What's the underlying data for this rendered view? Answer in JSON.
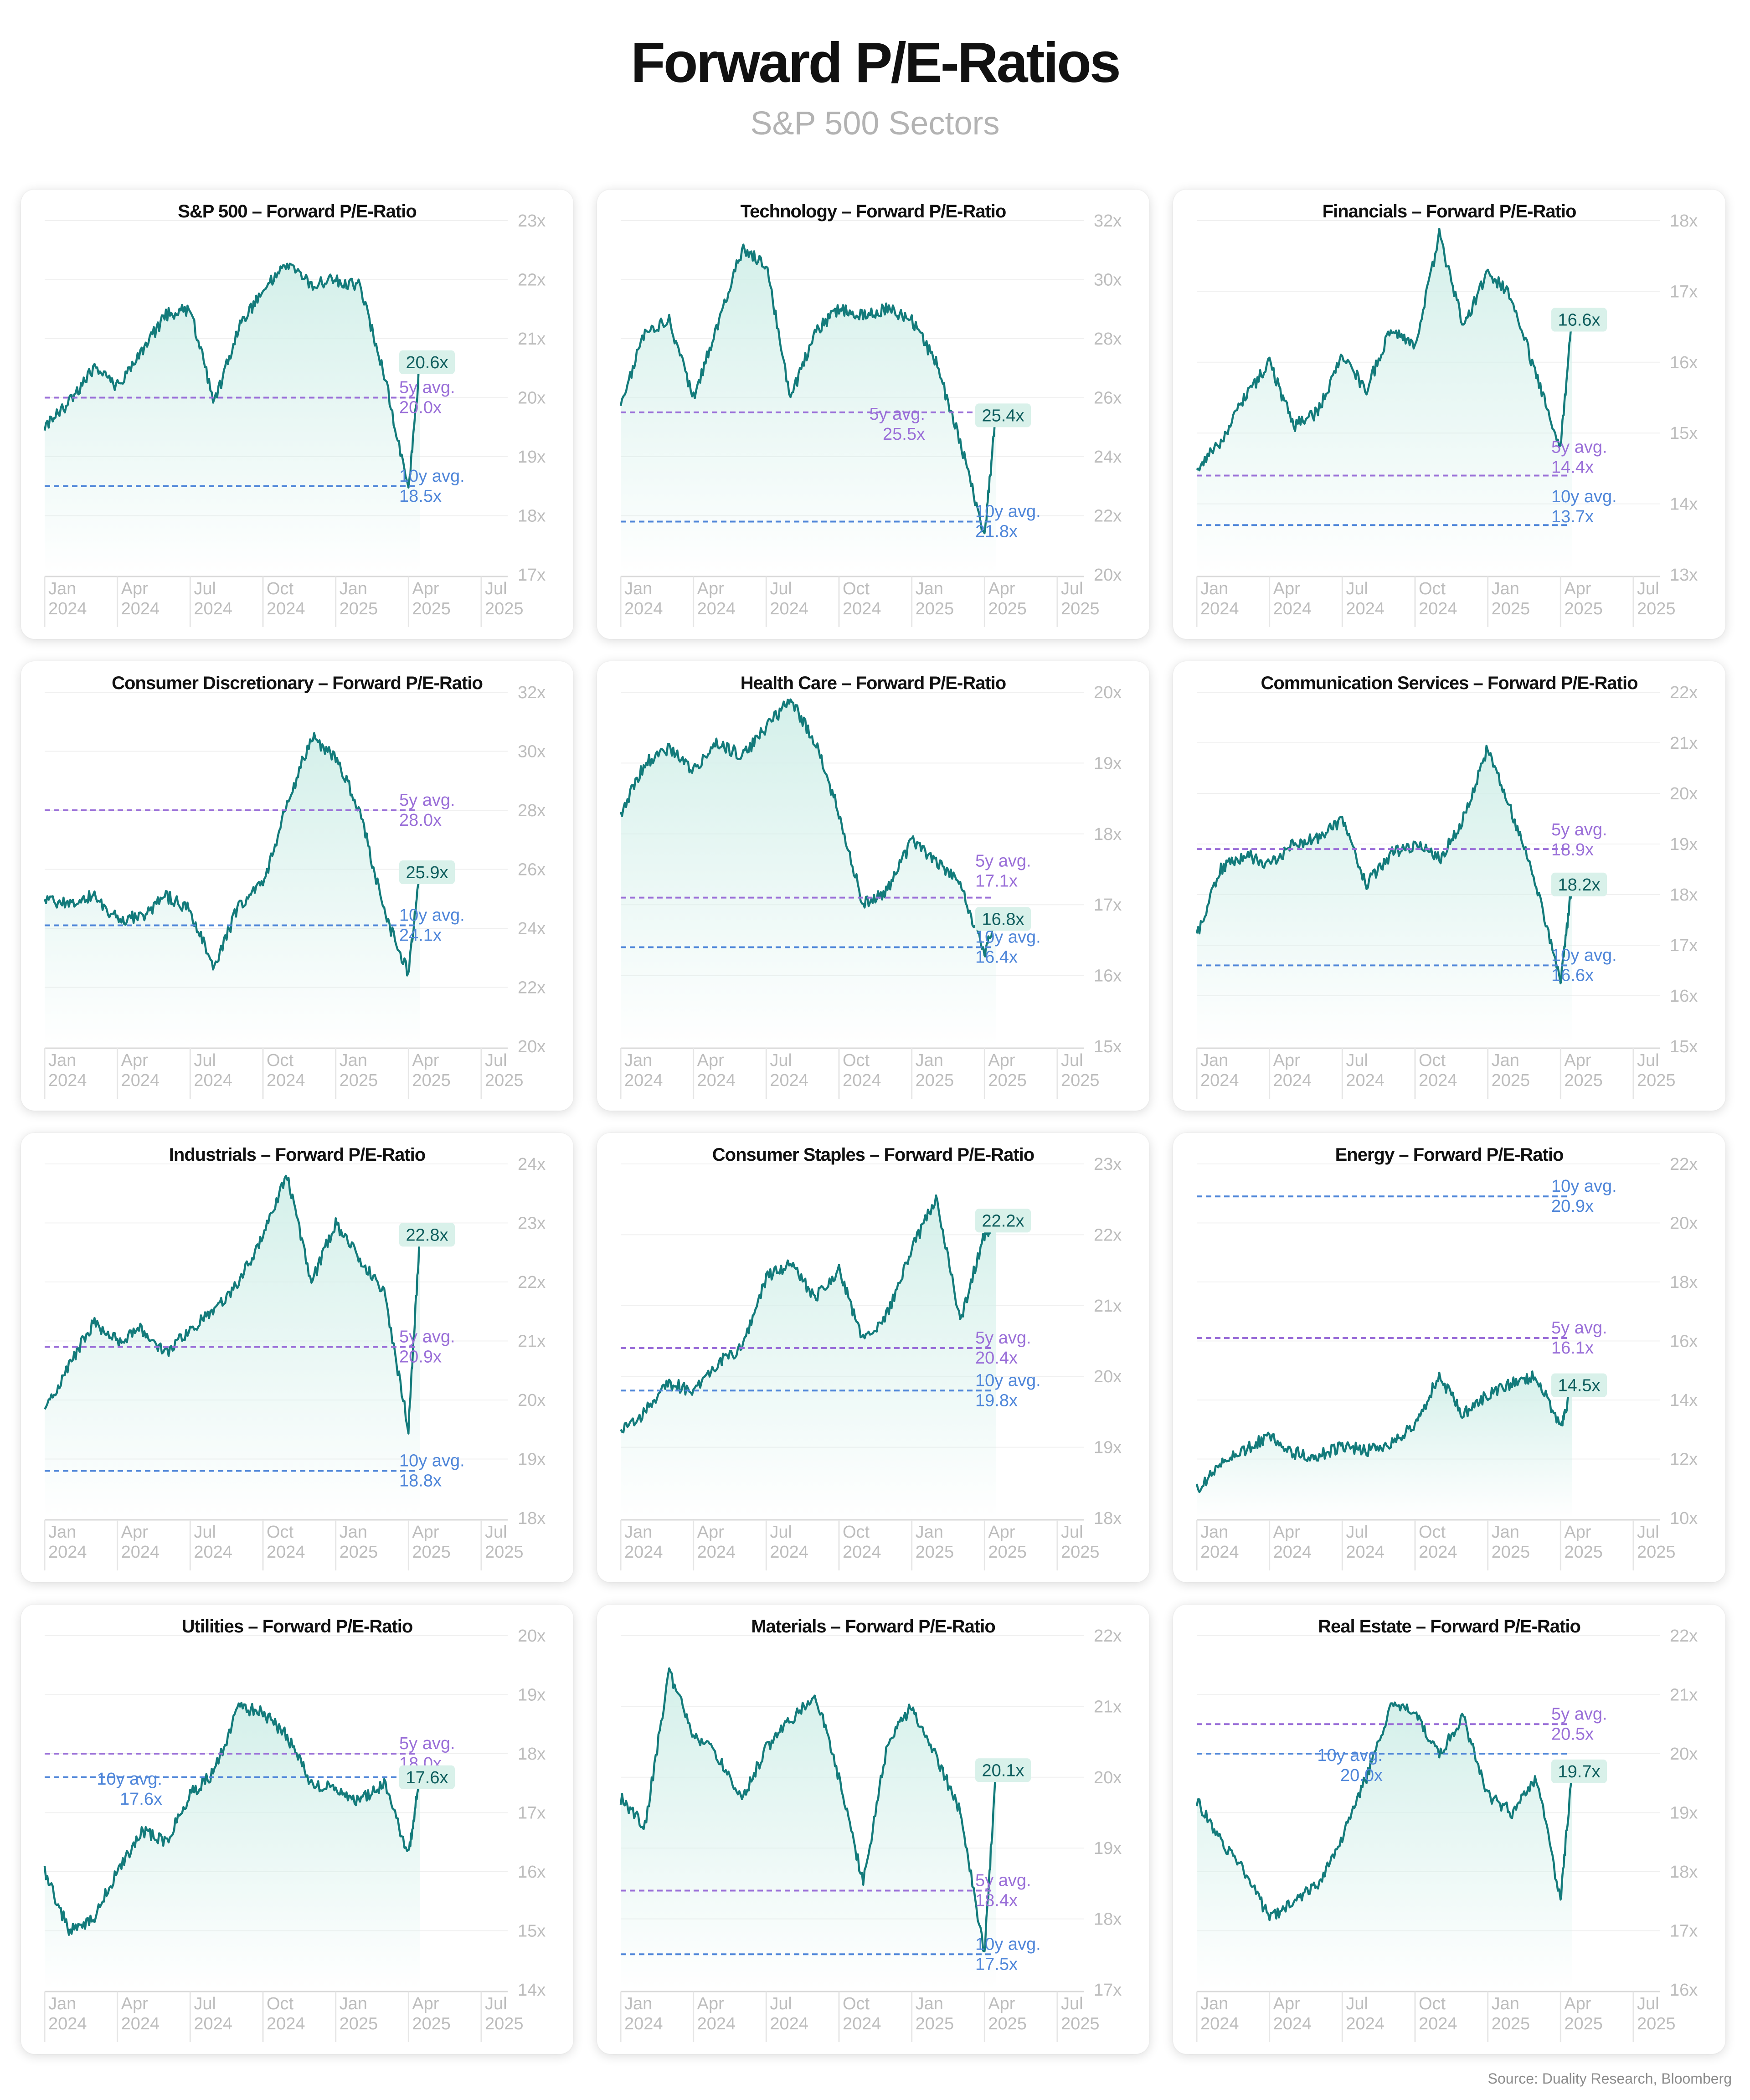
{
  "title": "Forward P/E-Ratios",
  "subtitle": "S&P 500 Sectors",
  "source": "Source: Duality Research, Bloomberg",
  "colors": {
    "line": "#137b7b",
    "fill": "#d2efe9",
    "avg5": "#9a6fd8",
    "avg10": "#4f86d9",
    "badge": "#d9f1ea",
    "axis": "#bdbdbd",
    "grid": "#f0f0f0"
  },
  "x_axis": [
    [
      "Jan",
      "2024"
    ],
    [
      "Apr",
      "2024"
    ],
    [
      "Jul",
      "2024"
    ],
    [
      "Oct",
      "2024"
    ],
    [
      "Jan",
      "2025"
    ],
    [
      "Apr",
      "2025"
    ],
    [
      "Jul",
      "2025"
    ]
  ],
  "chart_data": [
    {
      "type": "line",
      "title": "S&P 500 – Forward P/E-Ratio",
      "ylim": [
        17,
        23
      ],
      "yticks": [
        "17x",
        "18x",
        "19x",
        "20x",
        "21x",
        "22x",
        "23x"
      ],
      "x": [
        "2024-01",
        "2024-02",
        "2024-03",
        "2024-04",
        "2024-05",
        "2024-06",
        "2024-07",
        "2024-08",
        "2024-09",
        "2024-10",
        "2024-11",
        "2024-12",
        "2025-01",
        "2025-02",
        "2025-03",
        "2025-04",
        "2025-04-15"
      ],
      "values": [
        19.5,
        19.9,
        20.5,
        20.2,
        20.8,
        21.4,
        21.5,
        19.9,
        21.2,
        21.8,
        22.3,
        21.9,
        22.0,
        21.9,
        20.4,
        18.4,
        20.6
      ],
      "current_label": "20.6x",
      "avg5": {
        "value": 20.0,
        "label": [
          "5y avg.",
          "20.0x"
        ]
      },
      "avg10": {
        "value": 18.5,
        "label": [
          "10y avg.",
          "18.5x"
        ]
      }
    },
    {
      "type": "line",
      "title": "Technology – Forward P/E-Ratio",
      "ylim": [
        20,
        32
      ],
      "yticks": [
        "20x",
        "22x",
        "24x",
        "26x",
        "28x",
        "30x",
        "32x"
      ],
      "x": [
        "2024-01",
        "2024-02",
        "2024-03",
        "2024-04",
        "2024-05",
        "2024-06",
        "2024-07",
        "2024-08",
        "2024-09",
        "2024-10",
        "2024-11",
        "2024-12",
        "2025-01",
        "2025-02",
        "2025-03",
        "2025-04",
        "2025-04-15"
      ],
      "values": [
        25.8,
        28.2,
        28.6,
        26.0,
        28.5,
        31.0,
        30.5,
        26.0,
        28.2,
        29.0,
        28.8,
        29.0,
        28.6,
        27.2,
        24.5,
        21.3,
        25.4
      ],
      "current_label": "25.4x",
      "avg5": {
        "value": 25.5,
        "label": [
          "5y avg.",
          "25.5x"
        ]
      },
      "avg10": {
        "value": 21.8,
        "label": [
          "10y avg.",
          "21.8x"
        ]
      }
    },
    {
      "type": "line",
      "title": "Financials – Forward P/E-Ratio",
      "ylim": [
        13,
        18
      ],
      "yticks": [
        "13x",
        "14x",
        "15x",
        "16x",
        "17x",
        "18x"
      ],
      "x": [
        "2024-01",
        "2024-02",
        "2024-03",
        "2024-04",
        "2024-05",
        "2024-06",
        "2024-07",
        "2024-08",
        "2024-09",
        "2024-10",
        "2024-11",
        "2024-12",
        "2025-01",
        "2025-02",
        "2025-03",
        "2025-04",
        "2025-04-15"
      ],
      "values": [
        14.5,
        14.9,
        15.5,
        16.0,
        15.1,
        15.3,
        16.1,
        15.6,
        16.5,
        16.2,
        17.8,
        16.5,
        17.3,
        16.9,
        15.8,
        14.8,
        16.6
      ],
      "current_label": "16.6x",
      "avg5": {
        "value": 14.4,
        "label": [
          "5y avg.",
          "14.4x"
        ]
      },
      "avg10": {
        "value": 13.7,
        "label": [
          "10y avg.",
          "13.7x"
        ]
      }
    },
    {
      "type": "line",
      "title": "Consumer Discretionary – Forward P/E-Ratio",
      "ylim": [
        20,
        32
      ],
      "yticks": [
        "20x",
        "22x",
        "24x",
        "26x",
        "28x",
        "30x",
        "32x"
      ],
      "x": [
        "2024-01",
        "2024-02",
        "2024-03",
        "2024-04",
        "2024-05",
        "2024-06",
        "2024-07",
        "2024-08",
        "2024-09",
        "2024-10",
        "2024-11",
        "2024-12",
        "2025-01",
        "2025-02",
        "2025-03",
        "2025-04",
        "2025-04-15"
      ],
      "values": [
        25.0,
        24.8,
        25.1,
        24.3,
        24.4,
        25.1,
        24.6,
        22.6,
        24.8,
        25.5,
        28.2,
        30.5,
        29.8,
        28.0,
        24.5,
        22.5,
        25.9
      ],
      "current_label": "25.9x",
      "avg5": {
        "value": 28.0,
        "label": [
          "5y avg.",
          "28.0x"
        ]
      },
      "avg10": {
        "value": 24.1,
        "label": [
          "10y avg.",
          "24.1x"
        ]
      }
    },
    {
      "type": "line",
      "title": "Health Care – Forward P/E-Ratio",
      "ylim": [
        15,
        20
      ],
      "yticks": [
        "15x",
        "16x",
        "17x",
        "18x",
        "19x",
        "20x"
      ],
      "x": [
        "2024-01",
        "2024-02",
        "2024-03",
        "2024-04",
        "2024-05",
        "2024-06",
        "2024-07",
        "2024-08",
        "2024-09",
        "2024-10",
        "2024-11",
        "2024-12",
        "2025-01",
        "2025-02",
        "2025-03",
        "2025-04",
        "2025-04-15"
      ],
      "values": [
        18.3,
        19.0,
        19.2,
        18.9,
        19.3,
        19.1,
        19.5,
        19.9,
        19.3,
        18.3,
        17.0,
        17.2,
        17.9,
        17.6,
        17.3,
        16.3,
        16.8
      ],
      "current_label": "16.8x",
      "avg5": {
        "value": 17.1,
        "label": [
          "5y avg.",
          "17.1x"
        ]
      },
      "avg10": {
        "value": 16.4,
        "label": [
          "10y avg.",
          "16.4x"
        ]
      }
    },
    {
      "type": "line",
      "title": "Communication Services – Forward P/E-Ratio",
      "ylim": [
        15,
        22
      ],
      "yticks": [
        "15x",
        "16x",
        "17x",
        "18x",
        "19x",
        "20x",
        "21x",
        "22x"
      ],
      "x": [
        "2024-01",
        "2024-02",
        "2024-03",
        "2024-04",
        "2024-05",
        "2024-06",
        "2024-07",
        "2024-08",
        "2024-09",
        "2024-10",
        "2024-11",
        "2024-12",
        "2025-01",
        "2025-02",
        "2025-03",
        "2025-04",
        "2025-04-15"
      ],
      "values": [
        17.2,
        18.5,
        18.8,
        18.6,
        19.0,
        19.1,
        19.5,
        18.2,
        18.8,
        19.0,
        18.7,
        19.5,
        20.9,
        19.6,
        18.2,
        16.3,
        18.2
      ],
      "current_label": "18.2x",
      "avg5": {
        "value": 18.9,
        "label": [
          "5y avg.",
          "18.9x"
        ]
      },
      "avg10": {
        "value": 16.6,
        "label": [
          "10y avg.",
          "16.6x"
        ]
      }
    },
    {
      "type": "line",
      "title": "Industrials – Forward P/E-Ratio",
      "ylim": [
        18,
        24
      ],
      "yticks": [
        "18x",
        "19x",
        "20x",
        "21x",
        "22x",
        "23x",
        "24x"
      ],
      "x": [
        "2024-01",
        "2024-02",
        "2024-03",
        "2024-04",
        "2024-05",
        "2024-06",
        "2024-07",
        "2024-08",
        "2024-09",
        "2024-10",
        "2024-11",
        "2024-12",
        "2025-01",
        "2025-02",
        "2025-03",
        "2025-04",
        "2025-04-15"
      ],
      "values": [
        19.8,
        20.6,
        21.3,
        21.0,
        21.2,
        20.8,
        21.2,
        21.5,
        22.0,
        22.8,
        23.8,
        22.0,
        23.0,
        22.4,
        21.8,
        19.5,
        22.8
      ],
      "current_label": "22.8x",
      "avg5": {
        "value": 20.9,
        "label": [
          "5y avg.",
          "20.9x"
        ]
      },
      "avg10": {
        "value": 18.8,
        "label": [
          "10y avg.",
          "18.8x"
        ]
      }
    },
    {
      "type": "line",
      "title": "Consumer Staples – Forward P/E-Ratio",
      "ylim": [
        18,
        23
      ],
      "yticks": [
        "18x",
        "19x",
        "20x",
        "21x",
        "22x",
        "23x"
      ],
      "x": [
        "2024-01",
        "2024-02",
        "2024-03",
        "2024-04",
        "2024-05",
        "2024-06",
        "2024-07",
        "2024-08",
        "2024-09",
        "2024-10",
        "2024-11",
        "2024-12",
        "2025-01",
        "2025-02",
        "2025-03",
        "2025-04",
        "2025-04-15"
      ],
      "values": [
        19.2,
        19.5,
        19.9,
        19.8,
        20.2,
        20.4,
        21.4,
        21.6,
        21.1,
        21.5,
        20.5,
        20.9,
        21.8,
        22.5,
        20.8,
        22.0,
        22.2
      ],
      "current_label": "22.2x",
      "avg5": {
        "value": 20.4,
        "label": [
          "5y avg.",
          "20.4x"
        ]
      },
      "avg10": {
        "value": 19.8,
        "label": [
          "10y avg.",
          "19.8x"
        ]
      }
    },
    {
      "type": "line",
      "title": "Energy – Forward P/E-Ratio",
      "ylim": [
        10,
        22
      ],
      "yticks": [
        "10x",
        "12x",
        "14x",
        "16x",
        "18x",
        "20x",
        "22x"
      ],
      "x": [
        "2024-01",
        "2024-02",
        "2024-03",
        "2024-04",
        "2024-05",
        "2024-06",
        "2024-07",
        "2024-08",
        "2024-09",
        "2024-10",
        "2024-11",
        "2024-12",
        "2025-01",
        "2025-02",
        "2025-03",
        "2025-04",
        "2025-04-15"
      ],
      "values": [
        11.0,
        11.8,
        12.3,
        12.8,
        12.2,
        12.1,
        12.4,
        12.3,
        12.5,
        13.2,
        14.8,
        13.5,
        14.2,
        14.6,
        14.8,
        13.0,
        14.5
      ],
      "current_label": "14.5x",
      "avg5": {
        "value": 16.1,
        "label": [
          "5y avg.",
          "16.1x"
        ]
      },
      "avg10": {
        "value": 20.9,
        "label": [
          "10y avg.",
          "20.9x"
        ]
      }
    },
    {
      "type": "line",
      "title": "Utilities – Forward P/E-Ratio",
      "ylim": [
        14,
        20
      ],
      "yticks": [
        "14x",
        "15x",
        "16x",
        "17x",
        "18x",
        "19x",
        "20x"
      ],
      "x": [
        "2024-01",
        "2024-02",
        "2024-03",
        "2024-04",
        "2024-05",
        "2024-06",
        "2024-07",
        "2024-08",
        "2024-09",
        "2024-10",
        "2024-11",
        "2024-12",
        "2025-01",
        "2025-02",
        "2025-03",
        "2025-04",
        "2025-04-15"
      ],
      "values": [
        16.0,
        15.0,
        15.2,
        16.0,
        16.7,
        16.5,
        17.3,
        17.7,
        18.8,
        18.7,
        18.3,
        17.5,
        17.4,
        17.2,
        17.5,
        16.3,
        17.6
      ],
      "current_label": "17.6x",
      "avg5": {
        "value": 18.0,
        "label": [
          "5y avg.",
          "18.0x"
        ]
      },
      "avg10": {
        "value": 17.6,
        "label": [
          "10y avg.",
          "17.6x"
        ]
      }
    },
    {
      "type": "line",
      "title": "Materials – Forward P/E-Ratio",
      "ylim": [
        17,
        22
      ],
      "yticks": [
        "17x",
        "18x",
        "19x",
        "20x",
        "21x",
        "22x"
      ],
      "x": [
        "2024-01",
        "2024-02",
        "2024-03",
        "2024-04",
        "2024-05",
        "2024-06",
        "2024-07",
        "2024-08",
        "2024-09",
        "2024-10",
        "2024-11",
        "2024-12",
        "2025-01",
        "2025-02",
        "2025-03",
        "2025-04",
        "2025-04-15"
      ],
      "values": [
        19.7,
        19.3,
        21.5,
        20.6,
        20.3,
        19.7,
        20.4,
        20.8,
        21.2,
        20.0,
        18.5,
        20.5,
        21.0,
        20.3,
        19.5,
        17.5,
        20.1
      ],
      "current_label": "20.1x",
      "avg5": {
        "value": 18.4,
        "label": [
          "5y avg.",
          "18.4x"
        ]
      },
      "avg10": {
        "value": 17.5,
        "label": [
          "10y avg.",
          "17.5x"
        ]
      }
    },
    {
      "type": "line",
      "title": "Real Estate – Forward P/E-Ratio",
      "ylim": [
        16,
        22
      ],
      "yticks": [
        "16x",
        "17x",
        "18x",
        "19x",
        "20x",
        "21x",
        "22x"
      ],
      "x": [
        "2024-01",
        "2024-02",
        "2024-03",
        "2024-04",
        "2024-05",
        "2024-06",
        "2024-07",
        "2024-08",
        "2024-09",
        "2024-10",
        "2024-11",
        "2024-12",
        "2025-01",
        "2025-02",
        "2025-03",
        "2025-04",
        "2025-04-15"
      ],
      "values": [
        19.2,
        18.5,
        18.0,
        17.2,
        17.5,
        17.8,
        18.6,
        19.6,
        20.8,
        20.7,
        20.0,
        20.6,
        19.3,
        19.0,
        19.6,
        17.5,
        19.7
      ],
      "current_label": "19.7x",
      "avg5": {
        "value": 20.5,
        "label": [
          "5y avg.",
          "20.5x"
        ]
      },
      "avg10": {
        "value": 20.0,
        "label": [
          "10y avg.",
          "20.0x"
        ]
      }
    }
  ]
}
